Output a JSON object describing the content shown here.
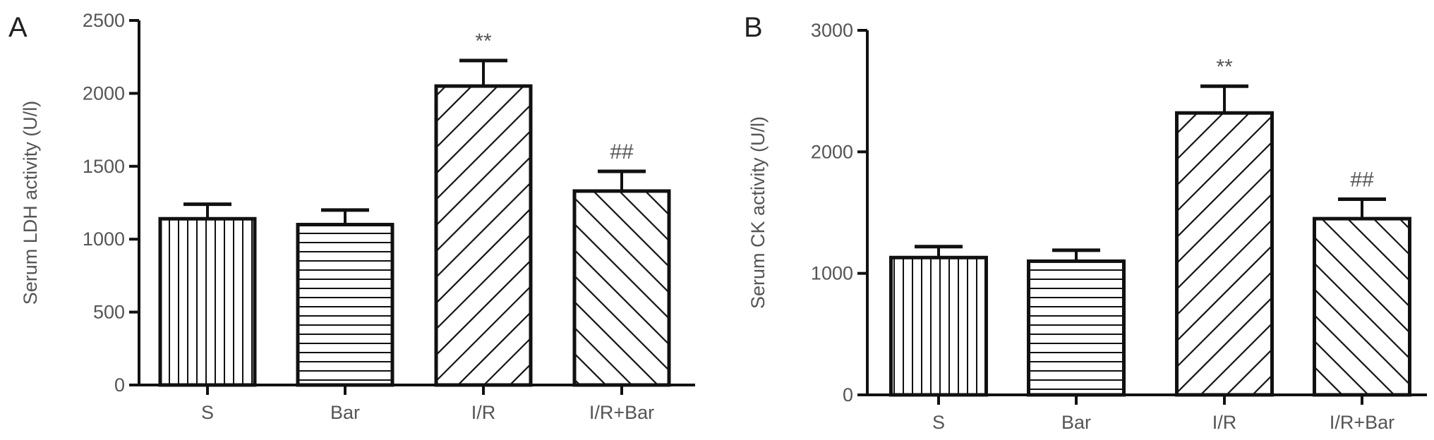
{
  "chart_data": [
    {
      "type": "bar",
      "panel": "A",
      "categories": [
        "S",
        "Bar",
        "I/R",
        "I/R+Bar"
      ],
      "values": [
        1140,
        1100,
        2050,
        1330
      ],
      "errors": [
        100,
        100,
        175,
        135
      ],
      "annotations": [
        "",
        "",
        "**",
        "##"
      ],
      "patterns": [
        "vertical",
        "horizontal",
        "diagonal-up",
        "diagonal-down"
      ],
      "xlabel": "",
      "ylabel": "Serum LDH activity (U/l)",
      "ylim": [
        0,
        2500
      ],
      "yticks": [
        0,
        500,
        1000,
        1500,
        2000,
        2500
      ],
      "grid": false
    },
    {
      "type": "bar",
      "panel": "B",
      "categories": [
        "S",
        "Bar",
        "I/R",
        "I/R+Bar"
      ],
      "values": [
        1130,
        1100,
        2320,
        1450
      ],
      "errors": [
        90,
        90,
        220,
        160
      ],
      "annotations": [
        "",
        "",
        "**",
        "##"
      ],
      "patterns": [
        "vertical",
        "horizontal",
        "diagonal-up",
        "diagonal-down"
      ],
      "xlabel": "",
      "ylabel": "Serum CK activity (U/l)",
      "ylim": [
        0,
        3000
      ],
      "yticks": [
        0,
        1000,
        2000,
        3000
      ],
      "grid": false
    }
  ]
}
